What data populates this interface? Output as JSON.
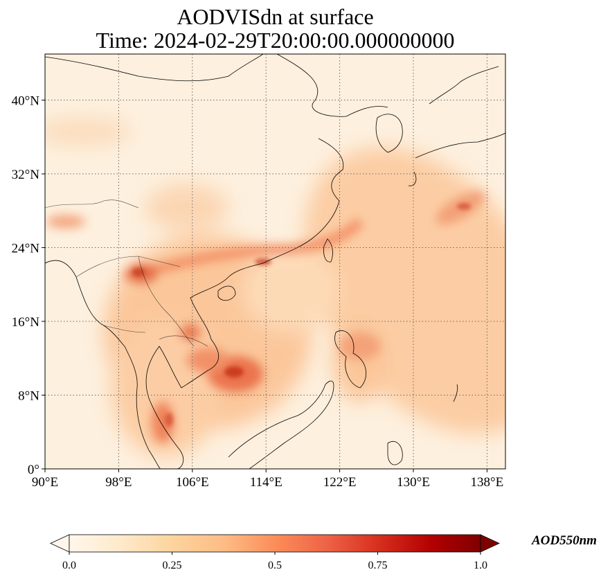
{
  "title": {
    "line1": "AODVISdn at surface",
    "line2": "Time: 2024-02-29T20:00:00.000000000"
  },
  "map": {
    "variable": "AODVISdn",
    "level": "surface",
    "extent": {
      "lon": [
        90,
        140
      ],
      "lat": [
        0,
        45
      ]
    },
    "longitude_ticks": [
      "90°E",
      "98°E",
      "106°E",
      "114°E",
      "122°E",
      "130°E",
      "138°E"
    ],
    "latitude_ticks": [
      "0°",
      "8°N",
      "16°N",
      "24°N",
      "32°N",
      "40°N"
    ],
    "gridlines": "dotted",
    "colormap": "OrRd",
    "colors": {
      "low": "#fff7ec",
      "mid": "#fc8d59",
      "high": "#7f0000",
      "coast": "#000000"
    }
  },
  "colorbar": {
    "label": "AOD550nm",
    "ticks": [
      "0.0",
      "0.25",
      "0.5",
      "0.75",
      "1.0"
    ],
    "min": 0.0,
    "max": 1.0,
    "extend": "both"
  }
}
